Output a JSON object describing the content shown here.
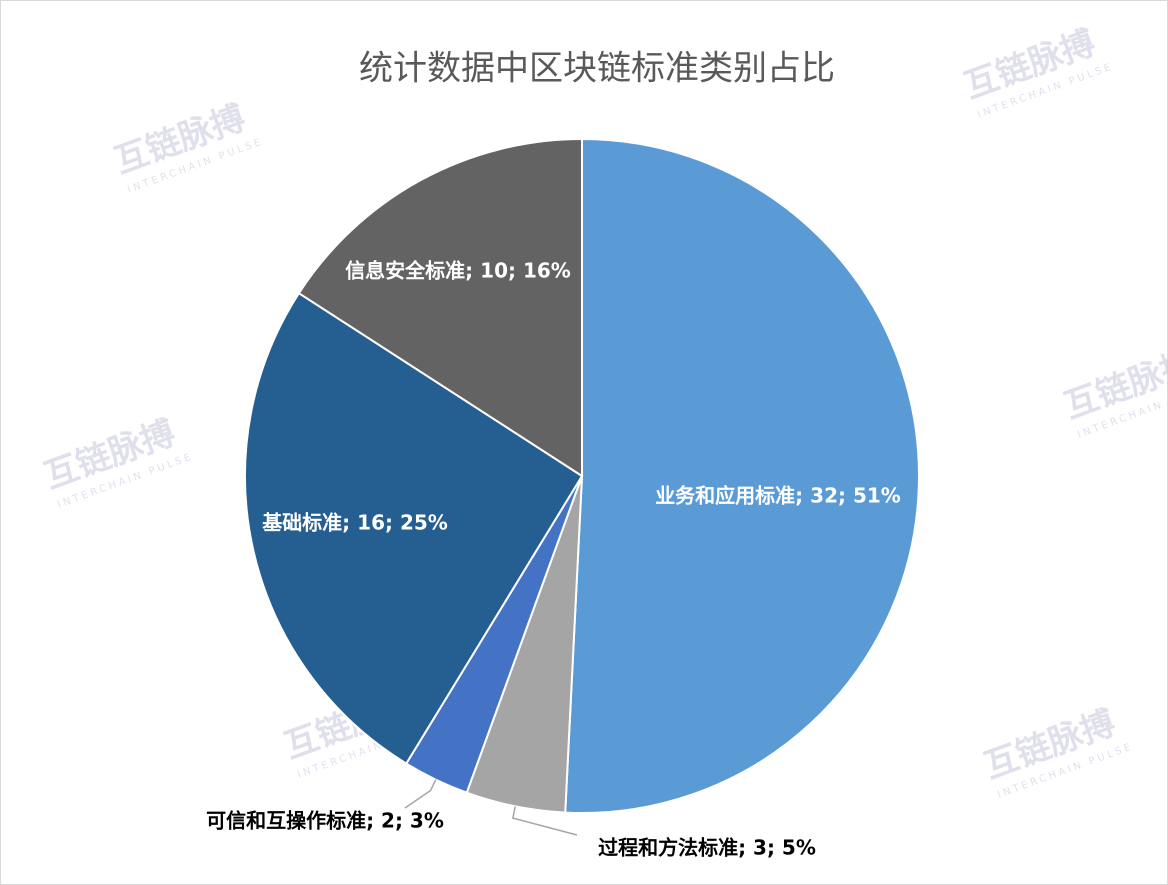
{
  "chart_data": {
    "type": "pie",
    "title": "统计数据中区块链标准类别占比",
    "values": [
      32,
      3,
      2,
      16,
      10
    ],
    "value_labels": [
      "业务和应用标准; 32; 51%",
      "过程和方法标准; 3; 5%",
      "可信和互操作标准; 2; 3%",
      "基础标准; 16; 25%",
      "信息安全标准; 10; 16%"
    ],
    "colors": [
      "#5b9bd5",
      "#a5a5a5",
      "#4472c4",
      "#255e91",
      "#636363"
    ],
    "label_colors": [
      "#ffffff",
      "#000000",
      "#000000",
      "#ffffff",
      "#ffffff"
    ]
  },
  "watermark": {
    "name": "互链脉搏",
    "subtitle": "INTERCHAIN PULSE"
  }
}
